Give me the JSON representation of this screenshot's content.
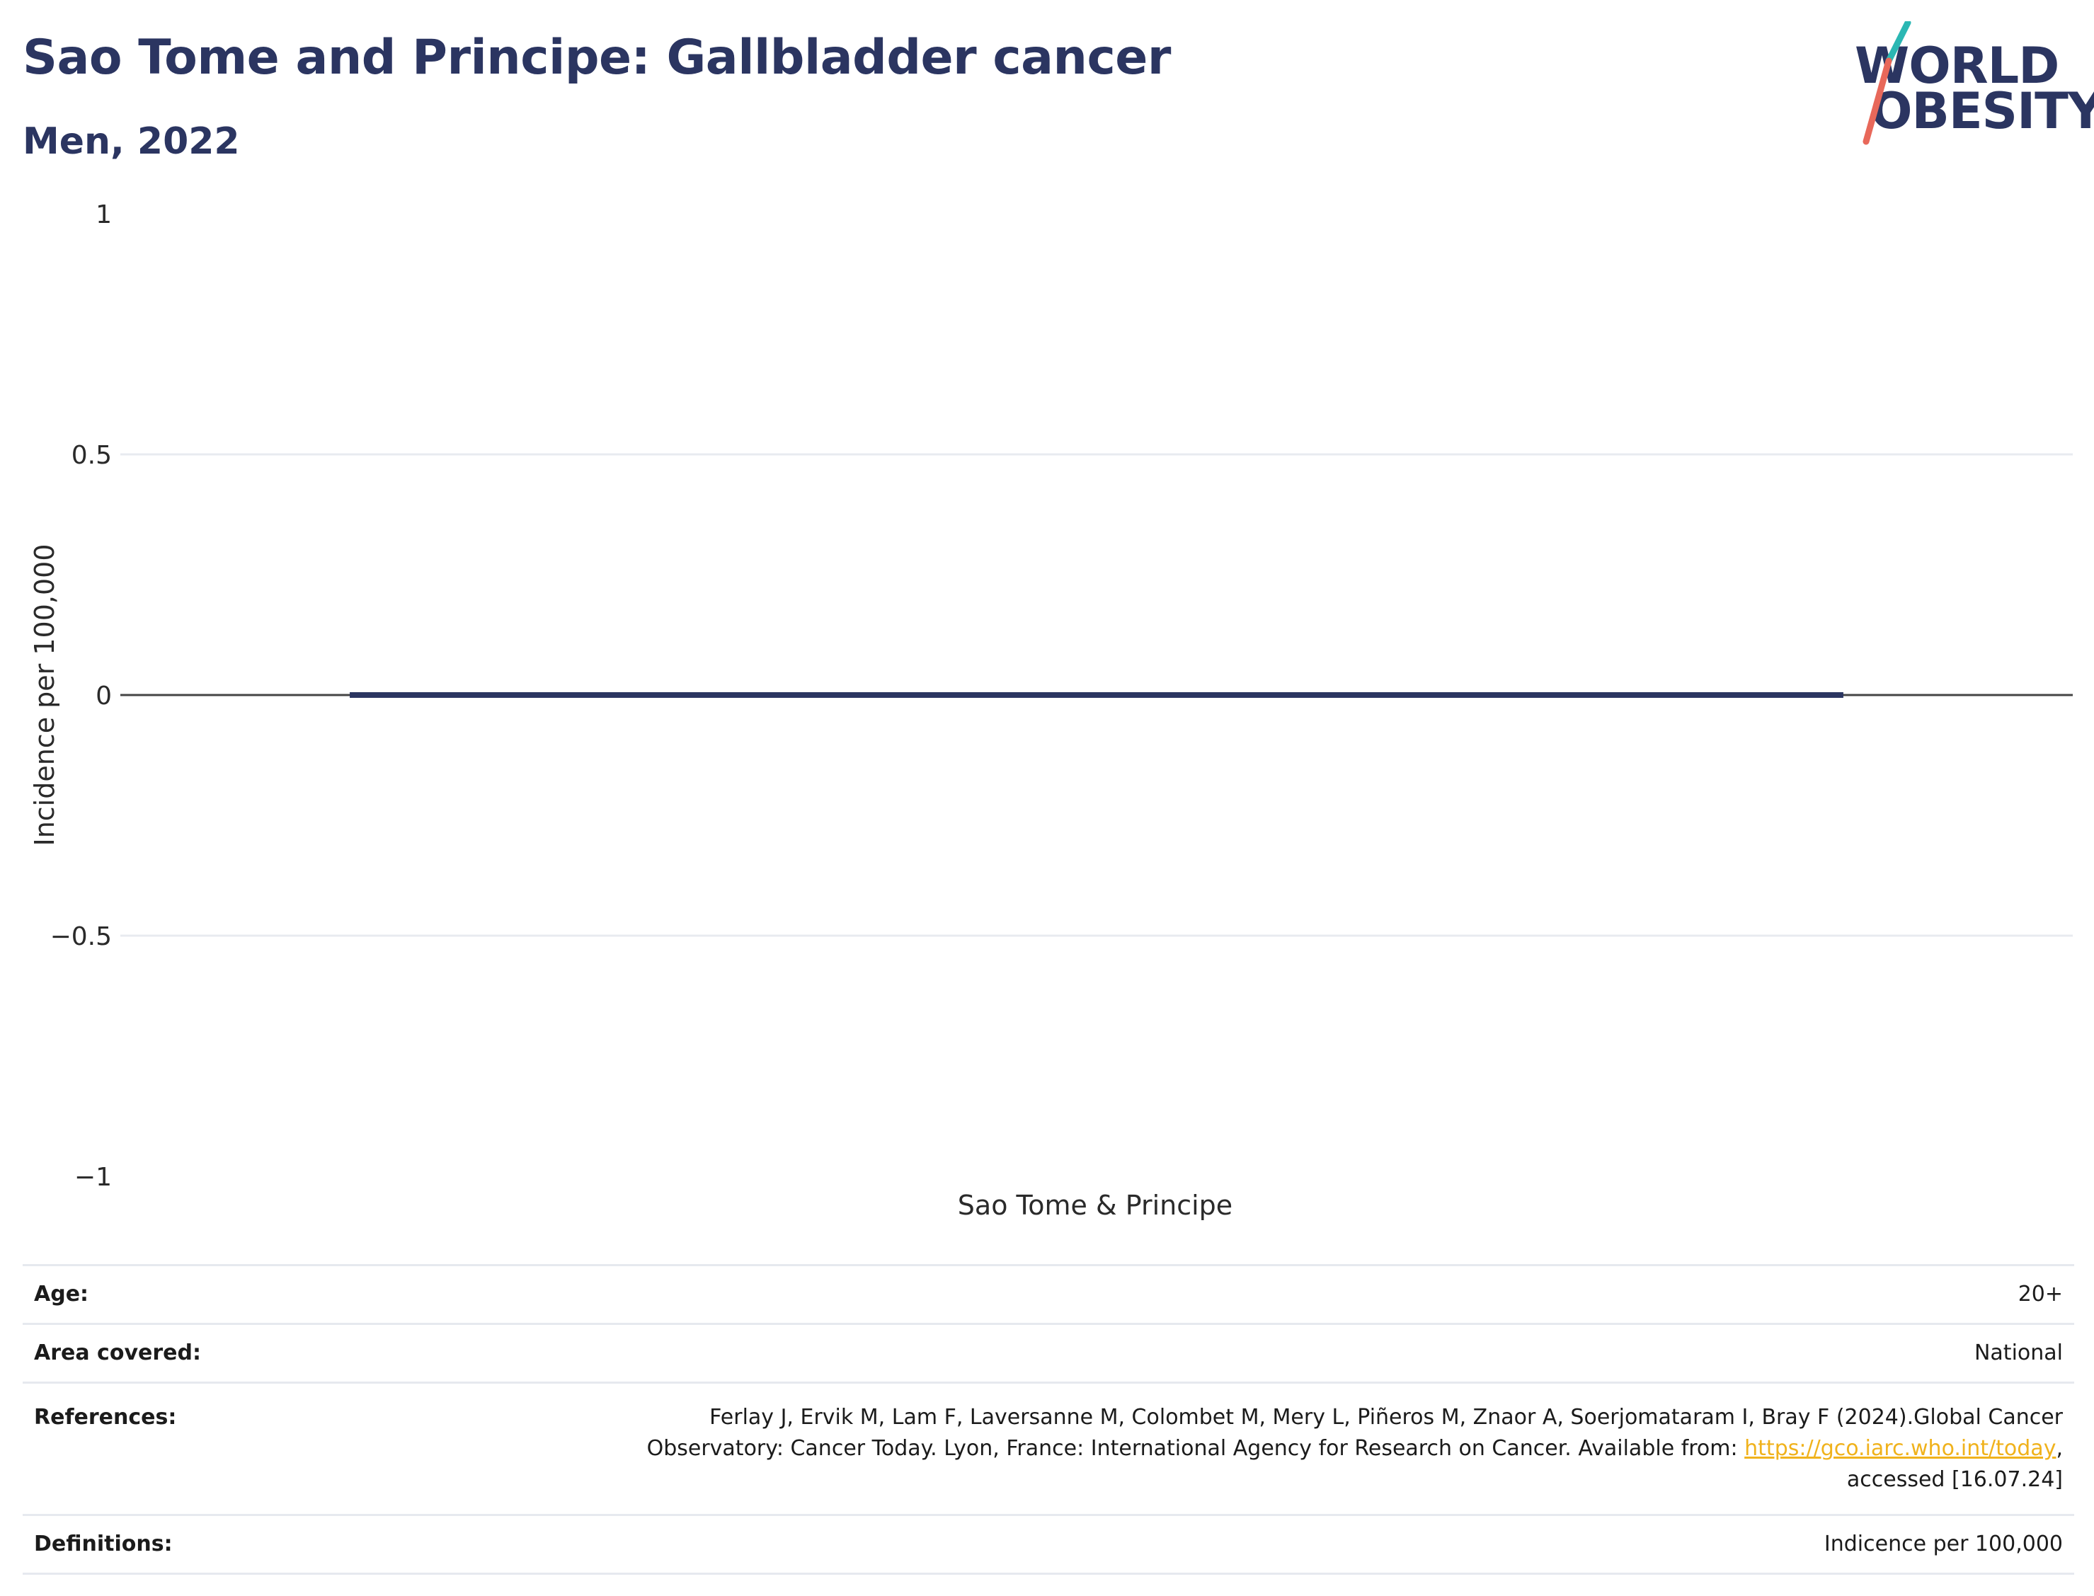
{
  "header": {
    "title": "Sao Tome and Principe: Gallbladder cancer",
    "subtitle": "Men, 2022"
  },
  "logo": {
    "line1": "WORLD",
    "line2": "OBESITY",
    "colors": {
      "text": "#2b3561",
      "accent_teal": "#2bb7b3",
      "accent_coral": "#e8685a"
    }
  },
  "chart_data": {
    "type": "bar",
    "categories": [
      "Sao Tome & Principe"
    ],
    "series": [
      {
        "values": [
          0
        ]
      }
    ],
    "xlabel": "",
    "ylabel": "Incidence per 100,000",
    "ylim": [
      -1,
      1
    ],
    "yticks": [
      1,
      0.5,
      0,
      -0.5,
      -1
    ],
    "ytick_labels": [
      "1",
      "0.5",
      "0",
      "−0.5",
      "−1"
    ],
    "grid": true,
    "bar_color": "#2b3561"
  },
  "meta": {
    "age_label": "Age:",
    "age_value": "20+",
    "area_label": "Area covered:",
    "area_value": "National",
    "references_label": "References:",
    "references_line1": "Ferlay J, Ervik M, Lam F, Laversanne M, Colombet M, Mery L, Piñeros M, Znaor A, Soerjomataram I, Bray F (2024).Global Cancer",
    "references_line2_pre": "Observatory: Cancer Today. Lyon, France: International Agency for Research on Cancer. Available from: ",
    "references_link": "https://gco.iarc.who.int/today",
    "references_line2_post": ",",
    "references_line3": "accessed [16.07.24]",
    "definitions_label": "Definitions:",
    "definitions_value": "Indicence per 100,000"
  }
}
